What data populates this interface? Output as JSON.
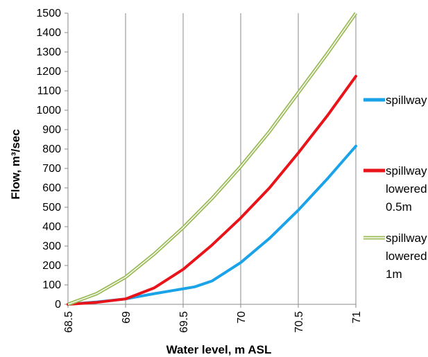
{
  "chart_data": {
    "type": "line",
    "xlabel": "Water level, m ASL",
    "ylabel": "Flow,  m³/sec",
    "xlim": [
      68.5,
      71
    ],
    "ylim": [
      0,
      1500
    ],
    "x_ticks": [
      "68.5",
      "69",
      "69.5",
      "70",
      "70.5",
      "71"
    ],
    "y_ticks": [
      "0",
      "100",
      "200",
      "300",
      "400",
      "500",
      "600",
      "700",
      "800",
      "900",
      "1000",
      "1100",
      "1200",
      "1300",
      "1400",
      "1500"
    ],
    "grid": "vertical",
    "legend_position": "right",
    "series": [
      {
        "name": "spillway",
        "color": "#1aa3e8",
        "style": "solid",
        "x": [
          68.5,
          68.75,
          69.0,
          69.25,
          69.5,
          69.6,
          69.75,
          70.0,
          70.25,
          70.5,
          70.75,
          71.0
        ],
        "y": [
          0,
          12,
          28,
          55,
          80,
          90,
          120,
          215,
          340,
          485,
          645,
          815
        ]
      },
      {
        "name": "spillway lowered 0.5m",
        "color": "#e8141a",
        "style": "solid",
        "x": [
          68.5,
          68.75,
          69.0,
          69.25,
          69.5,
          69.75,
          70.0,
          70.25,
          70.5,
          70.75,
          71.0
        ],
        "y": [
          0,
          10,
          28,
          85,
          180,
          305,
          445,
          600,
          780,
          970,
          1175
        ]
      },
      {
        "name": "spillway lowered 1m",
        "color": "#9cbb59",
        "style": "double",
        "x": [
          68.5,
          68.75,
          69.0,
          69.25,
          69.5,
          69.75,
          70.0,
          70.25,
          70.5,
          70.75,
          71.0
        ],
        "y": [
          0,
          55,
          140,
          260,
          395,
          545,
          710,
          890,
          1090,
          1290,
          1500
        ]
      }
    ],
    "legend": [
      [
        "spillway"
      ],
      [
        "spillway",
        "lowered",
        "0.5m"
      ],
      [
        "spillway",
        "lowered",
        "1m"
      ]
    ]
  }
}
